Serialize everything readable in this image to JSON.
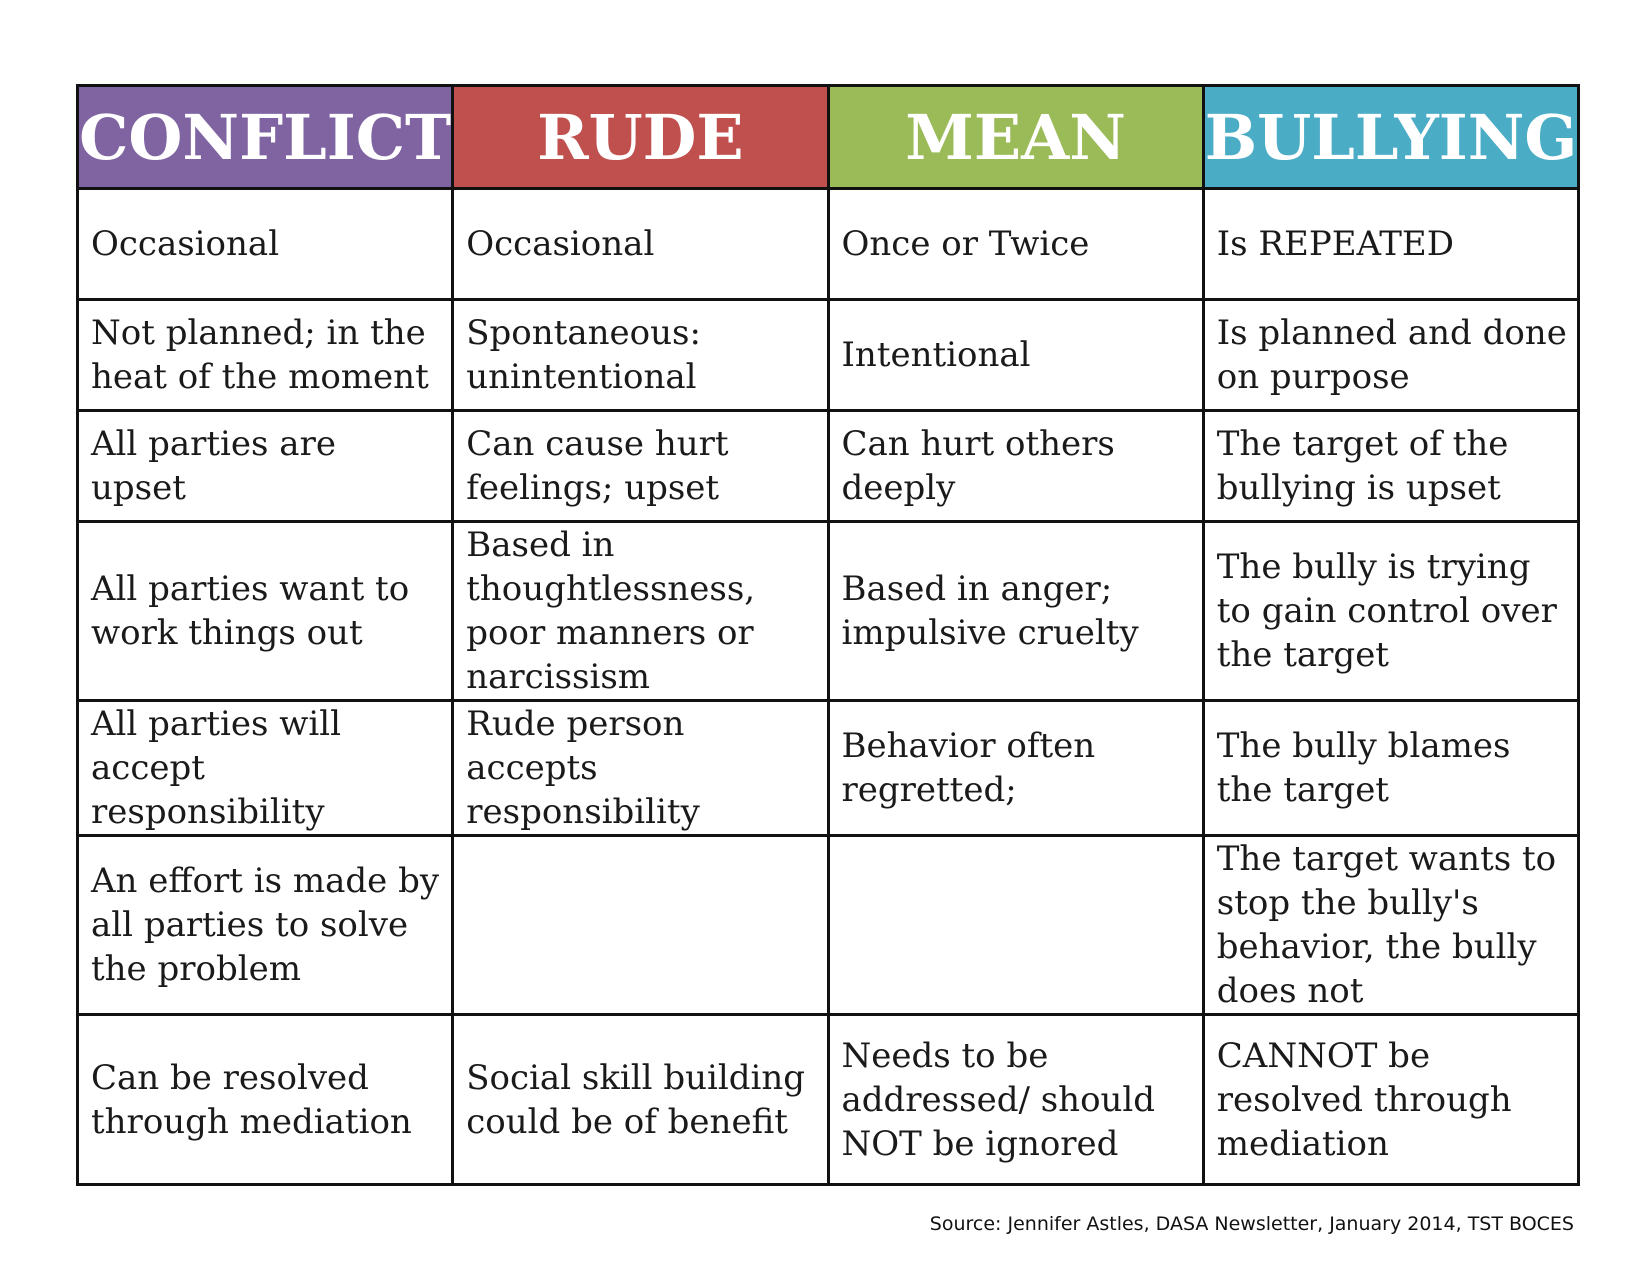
{
  "headers": [
    {
      "label": "CONFLICT",
      "color": "#8064a2"
    },
    {
      "label": "RUDE",
      "color": "#c0504d"
    },
    {
      "label": "MEAN",
      "color": "#9bbb59"
    },
    {
      "label": "BULLYING",
      "color": "#4bacc6"
    }
  ],
  "rows": [
    [
      "Occasional",
      "Occasional",
      "Once or Twice",
      "Is REPEATED"
    ],
    [
      "Not planned; in the heat of the moment",
      "Spontaneous: unintentional",
      "Intentional",
      "Is planned and done on purpose"
    ],
    [
      "All parties are upset",
      "Can cause hurt feelings; upset",
      "Can hurt others deeply",
      "The target of the bullying is upset"
    ],
    [
      "All parties want to work things out",
      "Based in thoughtlessness, poor manners or narcissism",
      "Based in anger; impulsive cruelty",
      "The bully is trying to gain control over the target"
    ],
    [
      "All parties will accept responsibility",
      "Rude person accepts responsibility",
      "Behavior often regretted;",
      "The bully blames the target"
    ],
    [
      "An effort is made by all parties to solve the problem",
      "",
      "",
      "The target wants to stop the bully's behavior, the bully does not"
    ],
    [
      "Can be resolved through mediation",
      "Social skill building could be of benefit",
      "Needs to be addressed/ should NOT be ignored",
      "CANNOT be resolved through mediation"
    ]
  ],
  "source": "Source: Jennifer Astles, DASA Newsletter, January 2014, TST BOCES"
}
